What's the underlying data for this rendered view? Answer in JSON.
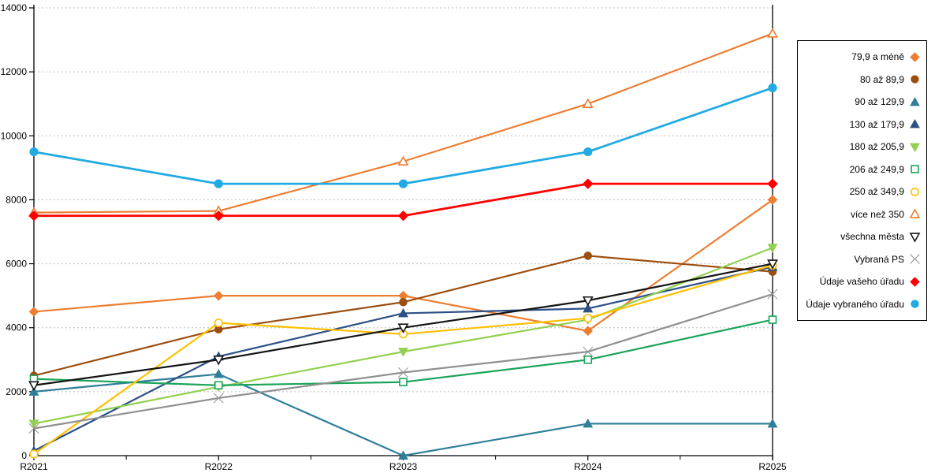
{
  "chart_data": {
    "type": "line",
    "title": "",
    "xlabel": "",
    "ylabel": "",
    "x_categories": [
      "R2021",
      "R2022",
      "R2023",
      "R2024",
      "R2025"
    ],
    "ylim": [
      0,
      14000
    ],
    "ytick_step": 2000,
    "y_tick_labels": [
      "0",
      "2000",
      "4000",
      "6000",
      "8000",
      "10000",
      "12000",
      "14000"
    ],
    "grid": "horizontal-dotted",
    "legend_position": "right",
    "series": [
      {
        "name": "79,9 a méně",
        "color": "#ED7D31",
        "marker": "diamond",
        "fill": "solid",
        "values": [
          4500,
          5000,
          5000,
          3900,
          8000
        ]
      },
      {
        "name": "80 až 89,9",
        "color": "#9C4E10",
        "marker": "circle",
        "fill": "solid",
        "values": [
          2500,
          3950,
          4800,
          6250,
          5750
        ]
      },
      {
        "name": "90 až 129,9",
        "color": "#2F7F9A",
        "marker": "triangle-up",
        "fill": "solid",
        "values": [
          2000,
          2550,
          0,
          1000,
          1000
        ]
      },
      {
        "name": "130 až 179,9",
        "color": "#2B5186",
        "marker": "triangle-up",
        "fill": "solid",
        "values": [
          150,
          3100,
          4450,
          4600,
          5900
        ]
      },
      {
        "name": "180 až 205,9",
        "color": "#92D050",
        "marker": "triangle-down",
        "fill": "solid",
        "values": [
          1000,
          2150,
          3250,
          4250,
          6500
        ]
      },
      {
        "name": "206 až 249,9",
        "color": "#1AA45A",
        "marker": "square",
        "fill": "open",
        "values": [
          2400,
          2200,
          2300,
          3000,
          4250
        ]
      },
      {
        "name": "250 až 349,9",
        "color": "#FFC000",
        "marker": "circle",
        "fill": "open",
        "values": [
          50,
          4150,
          3800,
          4300,
          5950
        ]
      },
      {
        "name": "více než 350",
        "color": "#ED7D31",
        "marker": "triangle-up",
        "fill": "open",
        "values": [
          7600,
          7650,
          9200,
          11000,
          13200
        ]
      },
      {
        "name": "všechna města",
        "color": "#141414",
        "marker": "triangle-down",
        "fill": "open",
        "values": [
          2200,
          3000,
          4000,
          4850,
          6000
        ]
      },
      {
        "name": "Vybraná PS",
        "color": "#909090",
        "marker": "x",
        "fill": "open",
        "values": [
          850,
          1800,
          2600,
          3250,
          5050
        ]
      },
      {
        "name": "Údaje vašeho úřadu",
        "color": "#FF0000",
        "marker": "diamond",
        "fill": "solid",
        "emphasis": true,
        "values": [
          7500,
          7500,
          7500,
          8500,
          8500
        ]
      },
      {
        "name": "Údaje vybraného úřadu",
        "color": "#22AAE2",
        "marker": "circle",
        "fill": "solid",
        "emphasis": true,
        "values": [
          9500,
          8500,
          8500,
          9500,
          11500
        ]
      }
    ]
  },
  "colors": {
    "background": "#ffffff",
    "axis": "#000000",
    "gridline": "#bcbcbc"
  }
}
